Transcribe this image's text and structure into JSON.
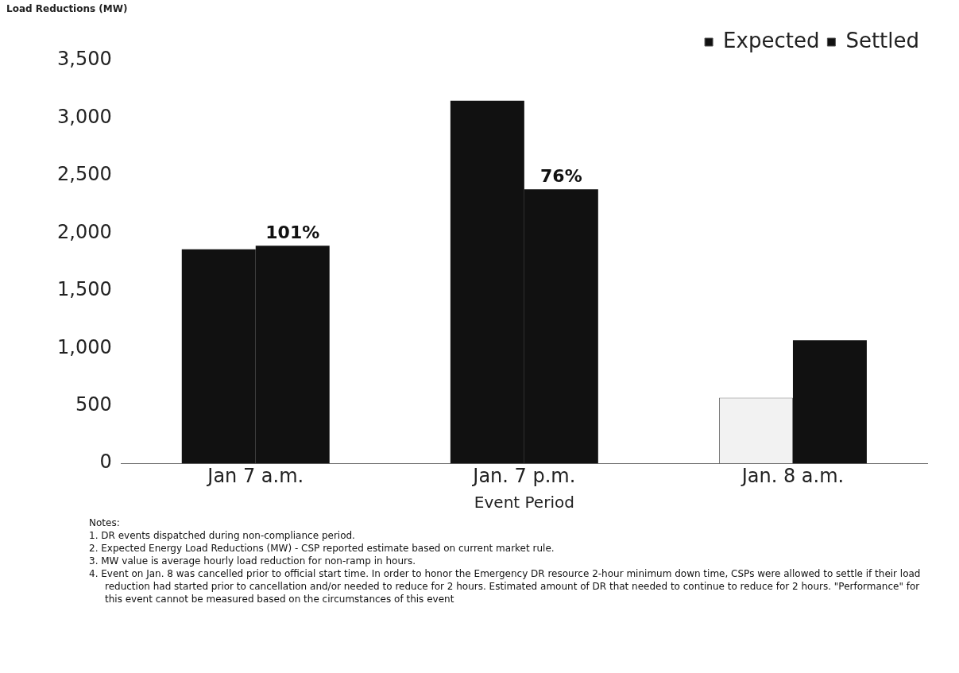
{
  "chart_data": {
    "type": "bar",
    "ylabel": "Load Reductions (MW)",
    "xlabel": "Event Period",
    "categories": [
      "Jan 7 a.m.",
      "Jan. 7 p.m.",
      "Jan. 8 a.m."
    ],
    "series": [
      {
        "name": "Expected",
        "color": "#111111",
        "colors": [
          "#111111",
          "#111111",
          "#f2f2f2"
        ],
        "values": [
          1860,
          3150,
          570
        ]
      },
      {
        "name": "Settled",
        "color": "#111111",
        "values": [
          1890,
          2380,
          1070
        ]
      }
    ],
    "ylim": [
      0,
      3500
    ],
    "yticks": [
      {
        "value": 0,
        "label": "0"
      },
      {
        "value": 500,
        "label": "500"
      },
      {
        "value": 1000,
        "label": "1,000"
      },
      {
        "value": 1500,
        "label": "1,500"
      },
      {
        "value": 2000,
        "label": "2,000"
      },
      {
        "value": 2500,
        "label": "2,500"
      },
      {
        "value": 3000,
        "label": "3,000"
      },
      {
        "value": 3500,
        "label": "3,500"
      }
    ],
    "grid": false,
    "legend": "top right",
    "annotations": [
      {
        "text": "101%",
        "x": "Jan 7 a.m.",
        "y": 1890
      },
      {
        "text": "76%",
        "x": "Jan. 7 p.m.",
        "y": 2380
      },
      "Notes:",
      "1.  DR events dispatched during non-compliance period.",
      "2.  Expected Energy Load Reductions (MW) - CSP reported estimate based on current market rule.",
      "3.  MW value is average hourly load reduction for non-ramp in hours.",
      "4.  Event on Jan. 8 was cancelled prior to official start time. In order to honor the Emergency DR resource 2-hour minimum down time, CSPs were allowed to settle if their load reduction had started prior to cancellation and/or needed to reduce for 2 hours. Estimated amount of DR that needed to continue to reduce for 2 hours. \"Performance\" for this event cannot be measured based on the circumstances of this event"
    ]
  }
}
